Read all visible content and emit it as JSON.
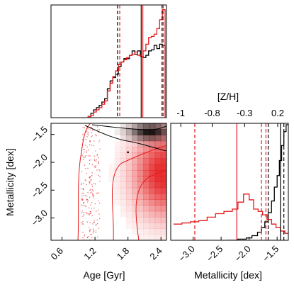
{
  "chart_data": [
    {
      "panel": "age-histogram",
      "type": "histogram",
      "x_range": [
        0.4,
        2.5
      ],
      "series": [
        {
          "color": "#000000",
          "x": [
            1.1,
            1.15,
            1.2,
            1.25,
            1.3,
            1.35,
            1.4,
            1.45,
            1.5,
            1.55,
            1.6,
            1.65,
            1.7,
            1.75,
            1.8,
            1.85,
            1.9,
            1.95,
            2.0,
            2.05,
            2.1,
            2.15,
            2.2,
            2.25,
            2.3,
            2.35,
            2.4,
            2.45
          ],
          "density": [
            0.01,
            0.04,
            0.07,
            0.09,
            0.11,
            0.14,
            0.17,
            0.26,
            0.33,
            0.36,
            0.39,
            0.46,
            0.5,
            0.53,
            0.53,
            0.56,
            0.6,
            0.57,
            0.6,
            0.55,
            0.54,
            0.56,
            0.6,
            0.61,
            0.65,
            0.62,
            0.66,
            0.65
          ]
        },
        {
          "color": "#e41a1c",
          "x": [
            1.1,
            1.15,
            1.2,
            1.25,
            1.3,
            1.35,
            1.4,
            1.45,
            1.5,
            1.55,
            1.6,
            1.65,
            1.7,
            1.75,
            1.8,
            1.85,
            1.9,
            1.95,
            2.0,
            2.05,
            2.1,
            2.15,
            2.2,
            2.25,
            2.3,
            2.35,
            2.4,
            2.45
          ],
          "density": [
            0.01,
            0.02,
            0.05,
            0.07,
            0.09,
            0.12,
            0.15,
            0.24,
            0.31,
            0.37,
            0.42,
            0.48,
            0.5,
            0.52,
            0.54,
            0.56,
            0.57,
            0.59,
            0.56,
            0.55,
            0.6,
            0.66,
            0.72,
            0.73,
            0.75,
            0.8,
            0.88,
            0.97
          ]
        }
      ],
      "markers": [
        {
          "color": "#000000",
          "style": "dashed",
          "x": 1.61
        },
        {
          "color": "#000000",
          "style": "solid",
          "x": 2.04
        },
        {
          "color": "#000000",
          "style": "dashed",
          "x": 2.42
        },
        {
          "color": "#e41a1c",
          "style": "dashed",
          "x": 1.65
        },
        {
          "color": "#e41a1c",
          "style": "solid",
          "x": 2.07
        },
        {
          "color": "#e41a1c",
          "style": "dashed",
          "x": 2.44
        }
      ]
    },
    {
      "panel": "age-metallicity-2d",
      "type": "heatmap",
      "x_range": [
        0.4,
        2.5
      ],
      "y_range": [
        -3.4,
        -1.3
      ],
      "xticks": [
        "0.6",
        "1.2",
        "1.8",
        "2.4"
      ],
      "yticks": [
        "−1.5",
        "−2.0",
        "−2.5",
        "−3.0"
      ],
      "xlabel": "Age [Gyr]",
      "ylabel": "Metallicity [dex]",
      "black_density_peak": {
        "age": 2.2,
        "metallicity": -1.45
      },
      "red_density_peak": {
        "age": 2.45,
        "metallicity": -2.2
      },
      "colors": {
        "black": "#000000",
        "red": "#e41a1c"
      }
    },
    {
      "panel": "metallicity-histogram",
      "type": "histogram",
      "x_range": [
        -3.4,
        -1.3
      ],
      "xticks": [
        "−3.0",
        "−2.5",
        "−2.0",
        "−1.5"
      ],
      "xlabel": "Metallicity [dex]",
      "top_axis_label": "[Z/H]",
      "top_axis_ticks": [
        "-1",
        "-0.8",
        "-0.3",
        "0.2"
      ],
      "series": [
        {
          "color": "#000000",
          "x": [
            -2.4,
            -2.2,
            -2.05,
            -1.95,
            -1.85,
            -1.78,
            -1.72,
            -1.66,
            -1.6,
            -1.55,
            -1.5,
            -1.46,
            -1.42,
            -1.38,
            -1.34
          ],
          "density": [
            0.0,
            0.01,
            0.02,
            0.04,
            0.07,
            0.11,
            0.16,
            0.24,
            0.34,
            0.46,
            0.56,
            0.69,
            0.82,
            0.94,
            1.0
          ]
        },
        {
          "color": "#e41a1c",
          "x": [
            -3.35,
            -3.2,
            -3.05,
            -2.9,
            -2.75,
            -2.6,
            -2.45,
            -2.3,
            -2.2,
            -2.1,
            -2.0,
            -1.92,
            -1.84,
            -1.76,
            -1.68,
            -1.6,
            -1.52,
            -1.44,
            -1.36
          ],
          "density": [
            0.14,
            0.15,
            0.16,
            0.17,
            0.2,
            0.23,
            0.25,
            0.27,
            0.33,
            0.4,
            0.35,
            0.27,
            0.25,
            0.22,
            0.18,
            0.14,
            0.11,
            0.08,
            0.06
          ]
        }
      ],
      "markers": [
        {
          "color": "#e41a1c",
          "style": "dashed",
          "x": -2.97
        },
        {
          "color": "#e41a1c",
          "style": "solid",
          "x": -2.22
        },
        {
          "color": "#e41a1c",
          "style": "dashed",
          "x": -1.78
        },
        {
          "color": "#e41a1c",
          "style": "dashed",
          "x": -1.7
        },
        {
          "color": "#000000",
          "style": "dashed",
          "x": -1.66
        },
        {
          "color": "#000000",
          "style": "solid",
          "x": -1.44
        },
        {
          "color": "#000000",
          "style": "dashed",
          "x": -1.38
        }
      ]
    }
  ]
}
